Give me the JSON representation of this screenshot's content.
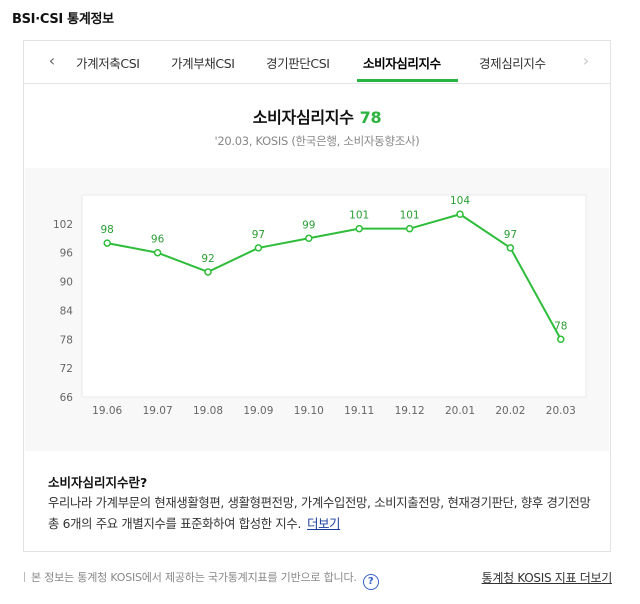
{
  "page": {
    "title": "BSI·CSI 통계정보"
  },
  "tabs": {
    "items": [
      "가계저축CSI",
      "가계부채CSI",
      "경기판단CSI",
      "소비자심리지수",
      "경제심리지수"
    ],
    "active_index": 3,
    "prev_icon": "chevron-left-icon",
    "next_icon": "chevron-right-icon"
  },
  "summary": {
    "title": "소비자심리지수",
    "value": "78",
    "source": "'20.03, KOSIS (한국은행, 소비자동향조사)"
  },
  "chart_data": {
    "type": "line",
    "categories": [
      "19.06",
      "19.07",
      "19.08",
      "19.09",
      "19.10",
      "19.11",
      "19.12",
      "20.01",
      "20.02",
      "20.03"
    ],
    "values": [
      98,
      96,
      92,
      97,
      99,
      101,
      101,
      104,
      97,
      78
    ],
    "ylim": [
      66,
      108
    ],
    "yticks": [
      66,
      72,
      78,
      84,
      90,
      96,
      102
    ],
    "line_color": "#2ebd3a",
    "grid": false,
    "data_labels": true
  },
  "description": {
    "title": "소비자심리지수란?",
    "body": "우리나라 가계부문의 현재생활형편, 생활형편전망, 가계수입전망, 소비지출전망, 현재경기판단, 향후 경기전망 총 6개의 주요 개별지수를 표준화하여 합성한 지수.",
    "more_link": "더보기"
  },
  "footer": {
    "note": "본 정보는 통계청 KOSIS에서 제공하는 국가통계지표를 기반으로 합니다.",
    "help_icon": "question-circle-icon",
    "link": "통계청 KOSIS 지표 더보기"
  }
}
